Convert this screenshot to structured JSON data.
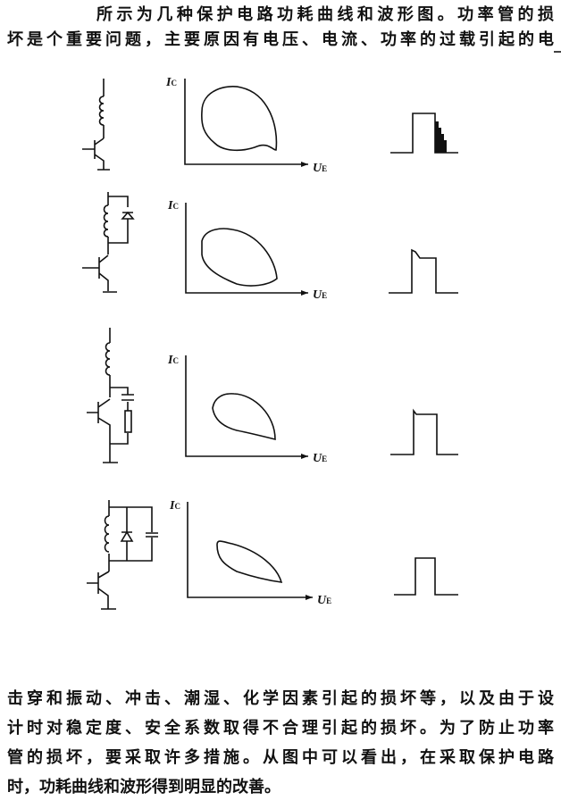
{
  "intro": {
    "lines": [
      "所示为几种保护电路功耗曲线和波形图。功率管的损",
      "坏是个重要问题，主要原因有电压、电流、功率的过载引起的电"
    ]
  },
  "figure": {
    "y_axis_label": "I",
    "y_axis_sub": "C",
    "x_axis_label": "U",
    "x_axis_sub": "E",
    "rows": [
      {
        "circuit": "transistor with inductor load, no protection"
      },
      {
        "circuit": "inductor with parallel diode"
      },
      {
        "circuit": "RC snubber across transistor"
      },
      {
        "circuit": "inductor with parallel diode and capacitor"
      }
    ]
  },
  "conclusion": {
    "lines": [
      "击穿和振动、冲击、潮湿、化学因素引起的损坏等，以及由于设",
      "计时对稳定度、安全系数取得不合理引起的损坏。为了防止功率",
      "管的损坏，要采取许多措施。从图中可以看出，在采取保护电路",
      "时，功耗曲线和波形得到明显的改善。"
    ]
  }
}
